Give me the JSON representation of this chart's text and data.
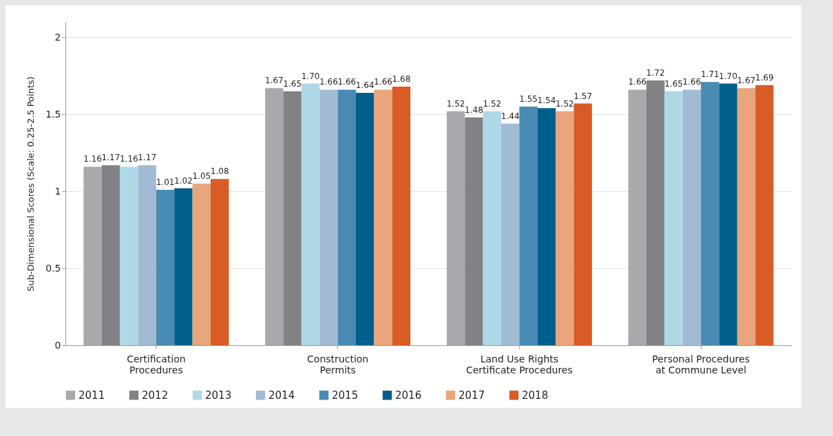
{
  "chart_data": {
    "type": "bar",
    "ylabel": "Sub-Dimensional Scores (Scale: 0.25-2.5 Points)",
    "categories": [
      "Certification Procedures",
      "Construction Permits",
      "Land Use Rights Certificate Procedures",
      "Personal Procedures at Commune Level"
    ],
    "series": [
      {
        "name": "2011",
        "color": "#a7a9ac",
        "values": [
          1.16,
          1.67,
          1.52,
          1.66
        ],
        "value_labels": [
          "1.16",
          "1.67",
          "1.52",
          "1.66"
        ]
      },
      {
        "name": "2012",
        "color": "#808285",
        "values": [
          1.17,
          1.65,
          1.48,
          1.72
        ],
        "value_labels": [
          "1.17",
          "1.65",
          "1.48",
          "1.72"
        ]
      },
      {
        "name": "2013",
        "color": "#aed8e6",
        "values": [
          1.16,
          1.7,
          1.52,
          1.65
        ],
        "value_labels": [
          "1.16",
          "1.70",
          "1.52",
          "1.65"
        ]
      },
      {
        "name": "2014",
        "color": "#a2bbd5",
        "values": [
          1.17,
          1.66,
          1.44,
          1.66
        ],
        "value_labels": [
          "1.17",
          "1.66",
          "1.44",
          "1.66"
        ]
      },
      {
        "name": "2015",
        "color": "#4a8bb3",
        "values": [
          1.01,
          1.66,
          1.55,
          1.71
        ],
        "value_labels": [
          "1.01",
          "1.66",
          "1.55",
          "1.71"
        ]
      },
      {
        "name": "2016",
        "color": "#005f8b",
        "values": [
          1.02,
          1.64,
          1.54,
          1.7
        ],
        "value_labels": [
          "1.02",
          "1.64",
          "1.54",
          "1.70"
        ]
      },
      {
        "name": "2017",
        "color": "#e9a57b",
        "values": [
          1.05,
          1.66,
          1.52,
          1.67
        ],
        "value_labels": [
          "1.05",
          "1.66",
          "1.52",
          "1.67"
        ]
      },
      {
        "name": "2018",
        "color": "#d95b26",
        "values": [
          1.08,
          1.68,
          1.57,
          1.69
        ],
        "value_labels": [
          "1.08",
          "1.68",
          "1.57",
          "1.69"
        ]
      }
    ],
    "ylim": [
      0,
      2.1
    ],
    "yticks": [
      0,
      0.5,
      1,
      1.5,
      2
    ],
    "grid": "y",
    "legend": "bottom"
  }
}
